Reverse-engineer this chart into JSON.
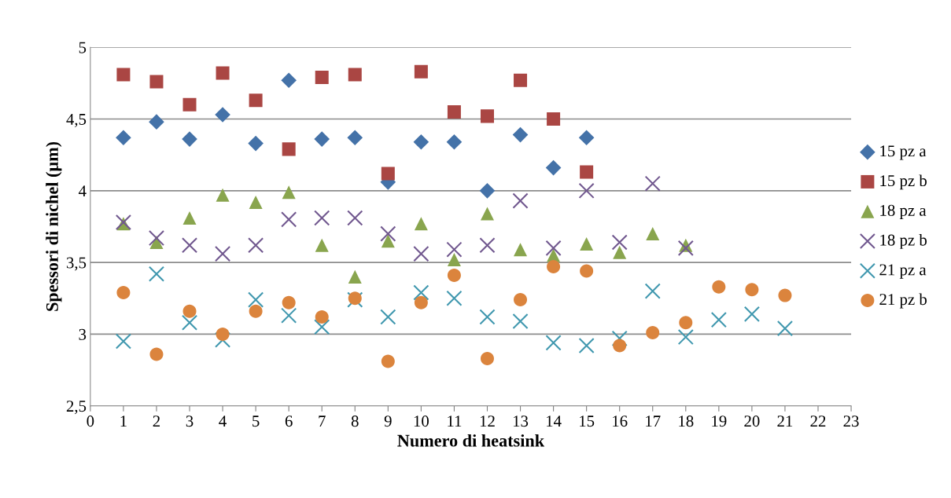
{
  "chart_data": {
    "type": "scatter",
    "xlabel": "Numero di heatsink",
    "ylabel": "Spessori di nichel (µm)",
    "xlim": [
      0,
      23
    ],
    "xticks": [
      0,
      1,
      2,
      3,
      4,
      5,
      6,
      7,
      8,
      9,
      10,
      11,
      12,
      13,
      14,
      15,
      16,
      17,
      18,
      19,
      20,
      21,
      22,
      23
    ],
    "ylim": [
      2.5,
      5
    ],
    "yticks": [
      {
        "value": 2.5,
        "label": "2,5"
      },
      3,
      {
        "value": 3.5,
        "label": "3,5"
      },
      4,
      {
        "value": 4.5,
        "label": "4,5"
      },
      5
    ],
    "grid": "y",
    "legend": "right",
    "series": [
      {
        "name": "15 pz a",
        "color": "#4472a8",
        "marker": "diamond",
        "x": [
          1,
          2,
          3,
          4,
          5,
          6,
          7,
          8,
          9,
          10,
          11,
          12,
          13,
          14,
          15
        ],
        "values": [
          4.37,
          4.48,
          4.36,
          4.53,
          4.33,
          4.77,
          4.36,
          4.37,
          4.06,
          4.34,
          4.34,
          4.0,
          4.39,
          4.16,
          4.37
        ]
      },
      {
        "name": "15 pz b",
        "color": "#aa4643",
        "marker": "square",
        "x": [
          1,
          2,
          3,
          4,
          5,
          6,
          7,
          8,
          9,
          10,
          11,
          12,
          13,
          14,
          15
        ],
        "values": [
          4.81,
          4.76,
          4.6,
          4.82,
          4.63,
          4.29,
          4.79,
          4.81,
          4.12,
          4.83,
          4.55,
          4.52,
          4.77,
          4.5,
          4.13
        ]
      },
      {
        "name": "18 pz a",
        "color": "#89a54e",
        "marker": "triangle",
        "x": [
          1,
          2,
          3,
          4,
          5,
          6,
          7,
          8,
          9,
          10,
          11,
          12,
          13,
          14,
          15,
          16,
          17,
          18
        ],
        "values": [
          3.77,
          3.64,
          3.81,
          3.97,
          3.92,
          3.99,
          3.62,
          3.4,
          3.65,
          3.77,
          3.52,
          3.84,
          3.59,
          3.55,
          3.63,
          3.57,
          3.7,
          3.62
        ]
      },
      {
        "name": "18 pz b",
        "color": "#71588f",
        "marker": "cross",
        "x": [
          1,
          2,
          3,
          4,
          5,
          6,
          7,
          8,
          9,
          10,
          11,
          12,
          13,
          14,
          15,
          16,
          17,
          18
        ],
        "values": [
          3.78,
          3.67,
          3.62,
          3.56,
          3.62,
          3.8,
          3.81,
          3.81,
          3.7,
          3.56,
          3.59,
          3.62,
          3.93,
          3.6,
          4.0,
          3.64,
          4.05,
          3.6
        ]
      },
      {
        "name": "21 pz a",
        "color": "#4198af",
        "marker": "cross",
        "x": [
          1,
          2,
          3,
          4,
          5,
          6,
          7,
          8,
          9,
          10,
          11,
          12,
          13,
          14,
          15,
          16,
          17,
          18,
          19,
          20,
          21
        ],
        "values": [
          2.95,
          3.42,
          3.08,
          2.96,
          3.24,
          3.13,
          3.05,
          3.24,
          3.12,
          3.29,
          3.25,
          3.12,
          3.09,
          2.94,
          2.92,
          2.97,
          3.3,
          2.98,
          3.1,
          3.14,
          3.04
        ]
      },
      {
        "name": "21 pz b",
        "color": "#db843d",
        "marker": "circle",
        "x": [
          1,
          2,
          3,
          4,
          5,
          6,
          7,
          8,
          9,
          10,
          11,
          12,
          13,
          14,
          15,
          16,
          17,
          18,
          19,
          20,
          21
        ],
        "values": [
          3.29,
          2.86,
          3.16,
          3.0,
          3.16,
          3.22,
          3.12,
          3.25,
          2.81,
          3.22,
          3.41,
          2.83,
          3.24,
          3.47,
          3.44,
          2.92,
          3.01,
          3.08,
          3.33,
          3.31,
          3.27
        ]
      }
    ]
  }
}
